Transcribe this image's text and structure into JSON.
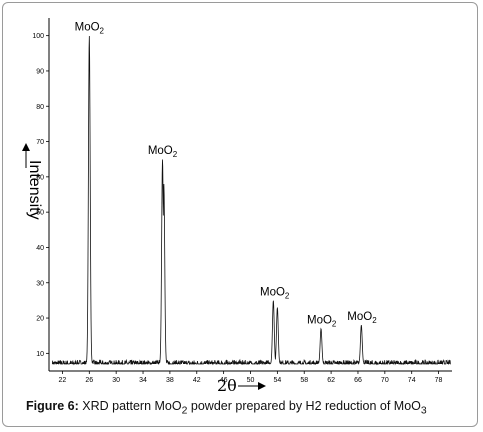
{
  "chart_data": {
    "type": "line",
    "title": "",
    "xlabel": "2θ",
    "ylabel": "Intensity",
    "xlim": [
      20,
      80
    ],
    "ylim": [
      5,
      105
    ],
    "x_ticks": [
      22,
      26,
      30,
      34,
      38,
      42,
      46,
      50,
      54,
      58,
      62,
      66,
      70,
      74,
      78
    ],
    "y_ticks": [
      10,
      20,
      30,
      40,
      50,
      60,
      70,
      80,
      90,
      100
    ],
    "grid": false,
    "series": [
      {
        "peaks": [
          {
            "x": 26.0,
            "y": 100
          },
          {
            "x": 36.9,
            "y": 65
          },
          {
            "x": 37.1,
            "y": 58
          },
          {
            "x": 53.4,
            "y": 25
          },
          {
            "x": 54.0,
            "y": 23
          },
          {
            "x": 60.5,
            "y": 17
          },
          {
            "x": 66.5,
            "y": 18
          }
        ],
        "baseline": 7
      }
    ],
    "annotations": [
      {
        "text": "MoO",
        "sub": "2",
        "x": 26.0,
        "y": 100
      },
      {
        "text": "MoO",
        "sub": "2",
        "x": 36.9,
        "y": 65
      },
      {
        "text": "MoO",
        "sub": "2",
        "x": 53.6,
        "y": 25
      },
      {
        "text": "MoO",
        "sub": "2",
        "x": 60.6,
        "y": 17
      },
      {
        "text": "MoO",
        "sub": "2",
        "x": 66.6,
        "y": 18
      }
    ]
  },
  "caption": {
    "label": "Figure 6:",
    "text_a": " XRD pattern MoO",
    "sub_a": "2",
    "text_b": " powder prepared by H2 reduction of MoO",
    "sub_b": "3"
  }
}
